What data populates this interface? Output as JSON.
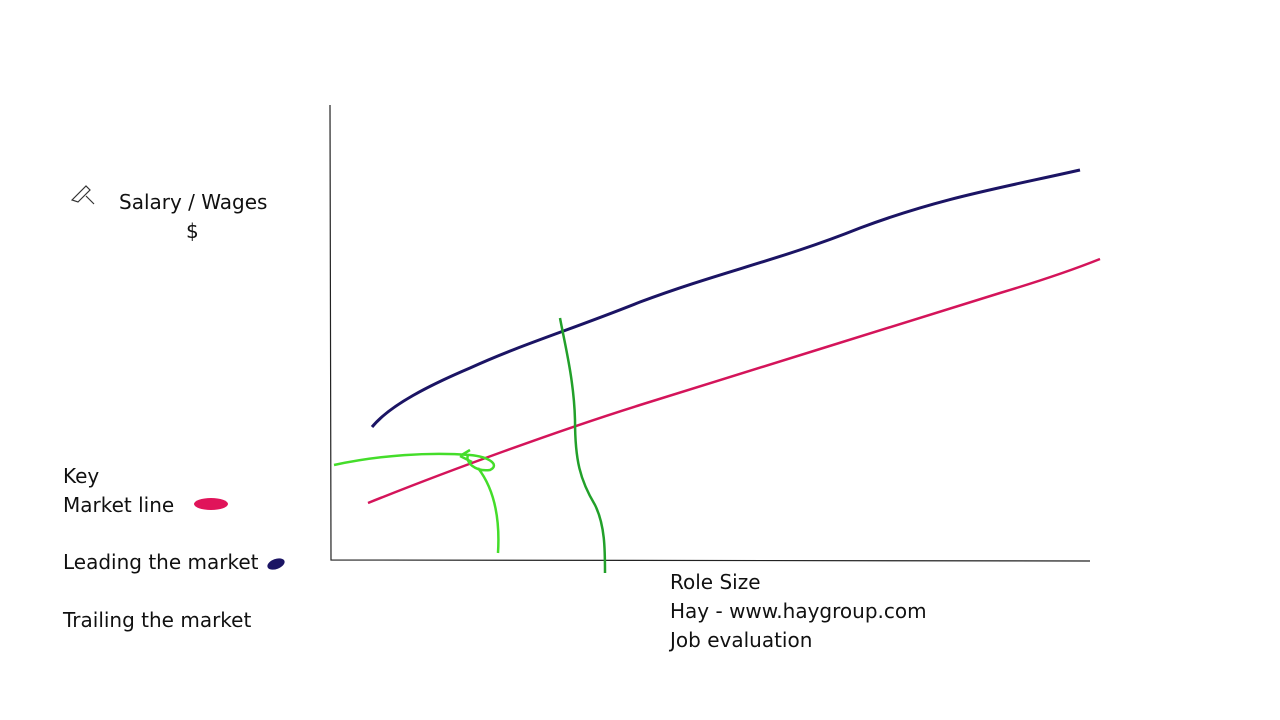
{
  "y_axis": {
    "label": "Salary / Wages",
    "unit": "$"
  },
  "key": {
    "title": "Key",
    "items": [
      "Market line",
      "Leading the market",
      "Trailing the market"
    ]
  },
  "x_axis": {
    "label": "Role Size",
    "notes": [
      "Hay - www.haygroup.com",
      "Job evaluation"
    ]
  }
}
